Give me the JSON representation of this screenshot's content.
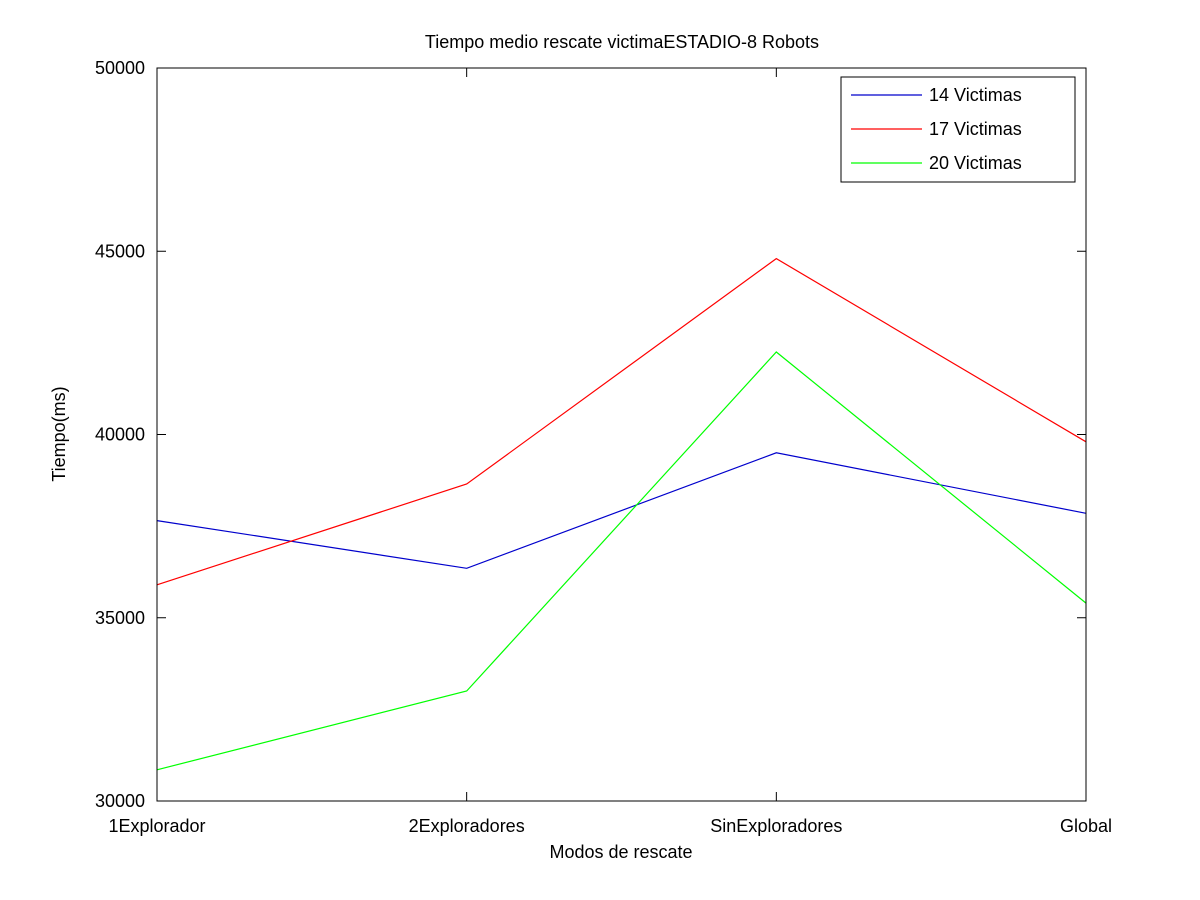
{
  "chart_data": {
    "type": "line",
    "title": "Tiempo medio rescate victimaESTADIO-8 Robots",
    "xlabel": "Modos de rescate",
    "ylabel": "Tiempo(ms)",
    "categories": [
      "1Explorador",
      "2Exploradores",
      "SinExploradores",
      "Global"
    ],
    "ylim": [
      30000,
      50000
    ],
    "yticks": [
      30000,
      35000,
      40000,
      45000,
      50000
    ],
    "grid": false,
    "legend_position": "top-right",
    "series": [
      {
        "name": "14 Victimas",
        "color": "#0000cc",
        "values": [
          37650,
          36350,
          39500,
          37850
        ]
      },
      {
        "name": "17 Victimas",
        "color": "#ff0000",
        "values": [
          35900,
          38650,
          44800,
          39800
        ]
      },
      {
        "name": "20 Victimas",
        "color": "#00ff00",
        "values": [
          30850,
          33000,
          42250,
          35400
        ]
      }
    ]
  }
}
